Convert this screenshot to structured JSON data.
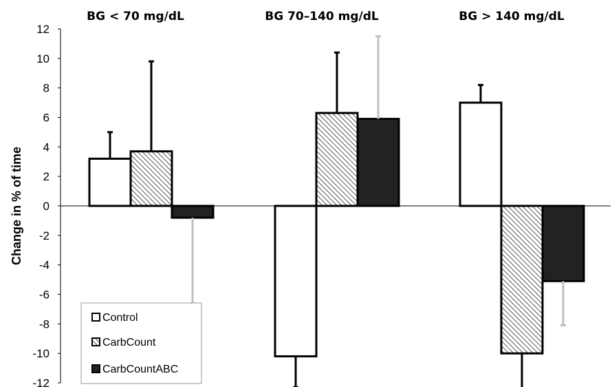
{
  "chart_data": {
    "type": "bar",
    "categories": [
      "BG < 70 mg/dL",
      "BG 70–140 mg/dL",
      "BG > 140 mg/dL"
    ],
    "series": [
      {
        "name": "Control",
        "values": [
          3.2,
          -10.2,
          7.0
        ],
        "errors": [
          1.8,
          2.1,
          1.2
        ],
        "fill": "#ffffff",
        "error_color": "#000000"
      },
      {
        "name": "CarbCount",
        "values": [
          3.7,
          6.3,
          -10.0
        ],
        "errors": [
          6.1,
          4.1,
          2.5
        ],
        "fill": "hatch",
        "error_color": "#000000"
      },
      {
        "name": "CarbCountABC",
        "values": [
          -0.8,
          5.9,
          -5.1
        ],
        "errors": [
          5.8,
          5.6,
          3.0
        ],
        "fill": "#222222",
        "error_color": "#c0c0c0"
      }
    ],
    "ylabel": "Change in % of time",
    "xlabel": "",
    "ylim": [
      -12,
      12
    ],
    "yticks": [
      12,
      10,
      8,
      6,
      4,
      2,
      0,
      -2,
      -4,
      -6,
      -8,
      -10,
      -12
    ],
    "grid": false,
    "legend_position": "bottom-left",
    "legend": [
      "Control",
      "CarbCount",
      "CarbCountABC"
    ]
  }
}
